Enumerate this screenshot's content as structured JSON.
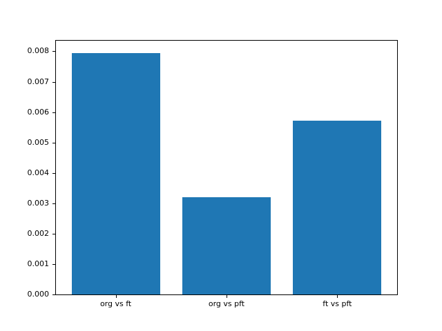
{
  "figure": {
    "background_color": "#ffffff",
    "spine_color": "#000000",
    "tick_text_color": "#000000"
  },
  "chart_data": {
    "type": "bar",
    "title": "",
    "xlabel": "",
    "ylabel": "",
    "categories": [
      "org vs ft",
      "org vs pft",
      "ft vs pft"
    ],
    "values": [
      0.00795,
      0.00321,
      0.00573
    ],
    "bar_color": "#1f77b4",
    "bar_width": 0.8,
    "xlim": [
      -0.54,
      2.54
    ],
    "ylim": [
      0,
      0.00835
    ],
    "yticks": [
      0,
      0.001,
      0.002,
      0.003,
      0.004,
      0.005,
      0.006,
      0.007,
      0.008
    ],
    "ytick_labels": [
      "0.000",
      "0.001",
      "0.002",
      "0.003",
      "0.004",
      "0.005",
      "0.006",
      "0.007",
      "0.008"
    ],
    "grid": false,
    "legend_position": "none"
  }
}
